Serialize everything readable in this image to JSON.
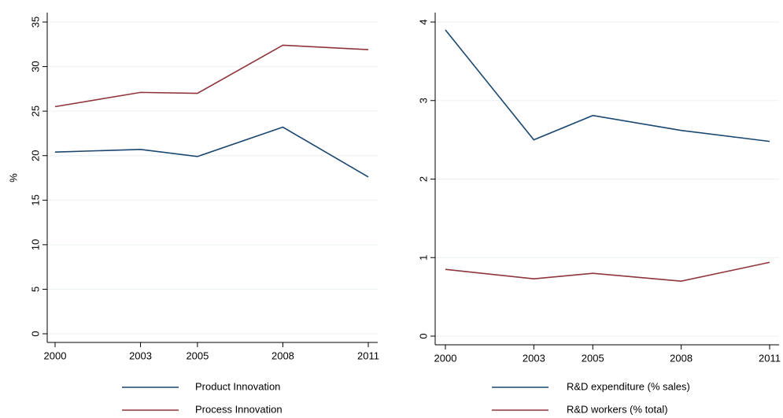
{
  "chart_data": [
    {
      "type": "line",
      "ylabel": "%",
      "x": [
        2000,
        2003,
        2005,
        2008,
        2011
      ],
      "xlim": [
        2000,
        2011
      ],
      "xticks": [
        2000,
        2003,
        2005,
        2008,
        2011
      ],
      "ylim": [
        0,
        35
      ],
      "yticks": [
        0,
        5,
        10,
        15,
        20,
        25,
        30,
        35
      ],
      "grid": true,
      "series": [
        {
          "name": "Product Innovation",
          "color": "#1a476f",
          "values": [
            20.4,
            20.7,
            19.9,
            23.2,
            17.6
          ]
        },
        {
          "name": "Process Innovation",
          "color": "#90353b",
          "values": [
            25.5,
            27.1,
            27.0,
            32.4,
            31.9
          ]
        }
      ]
    },
    {
      "type": "line",
      "x": [
        2000,
        2003,
        2005,
        2008,
        2011
      ],
      "xlim": [
        2000,
        2011
      ],
      "xticks": [
        2000,
        2003,
        2005,
        2008,
        2011
      ],
      "ylim": [
        0,
        4
      ],
      "yticks": [
        0,
        1,
        2,
        3,
        4
      ],
      "grid": true,
      "series": [
        {
          "name": "R&D expenditure (% sales)",
          "color": "#1a476f",
          "values": [
            3.9,
            2.5,
            2.81,
            2.62,
            2.48
          ]
        },
        {
          "name": "R&D workers (% total)",
          "color": "#90353b",
          "values": [
            0.85,
            0.73,
            0.8,
            0.7,
            0.94
          ]
        }
      ]
    }
  ]
}
